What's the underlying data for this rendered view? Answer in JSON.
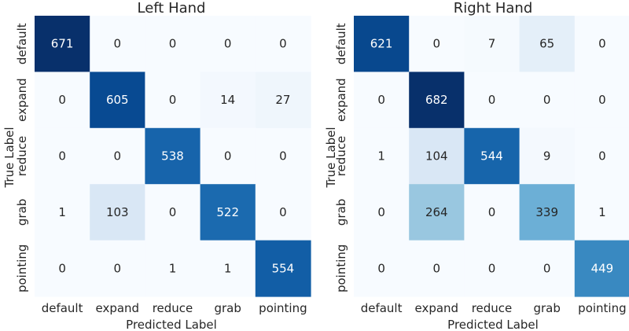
{
  "chart_data": [
    {
      "type": "heatmap",
      "title": "Left Hand",
      "xlabel": "Predicted Label",
      "ylabel": "True Label",
      "x_categories": [
        "default",
        "expand",
        "reduce",
        "grab",
        "pointing"
      ],
      "y_categories": [
        "default",
        "expand",
        "reduce",
        "grab",
        "pointing"
      ],
      "colormap": "Blues",
      "values": [
        [
          671,
          0,
          0,
          0,
          0
        ],
        [
          0,
          605,
          0,
          14,
          27
        ],
        [
          0,
          0,
          538,
          0,
          0
        ],
        [
          1,
          103,
          0,
          522,
          0
        ],
        [
          0,
          0,
          1,
          1,
          554
        ]
      ]
    },
    {
      "type": "heatmap",
      "title": "Right Hand",
      "xlabel": "Predicted Label",
      "ylabel": "True Label",
      "x_categories": [
        "default",
        "expand",
        "reduce",
        "grab",
        "pointing"
      ],
      "y_categories": [
        "default",
        "expand",
        "reduce",
        "grab",
        "pointing"
      ],
      "colormap": "Blues",
      "values": [
        [
          621,
          0,
          7,
          65,
          0
        ],
        [
          0,
          682,
          0,
          0,
          0
        ],
        [
          1,
          104,
          544,
          9,
          0
        ],
        [
          0,
          264,
          0,
          339,
          1
        ],
        [
          0,
          0,
          0,
          0,
          449
        ]
      ]
    }
  ]
}
